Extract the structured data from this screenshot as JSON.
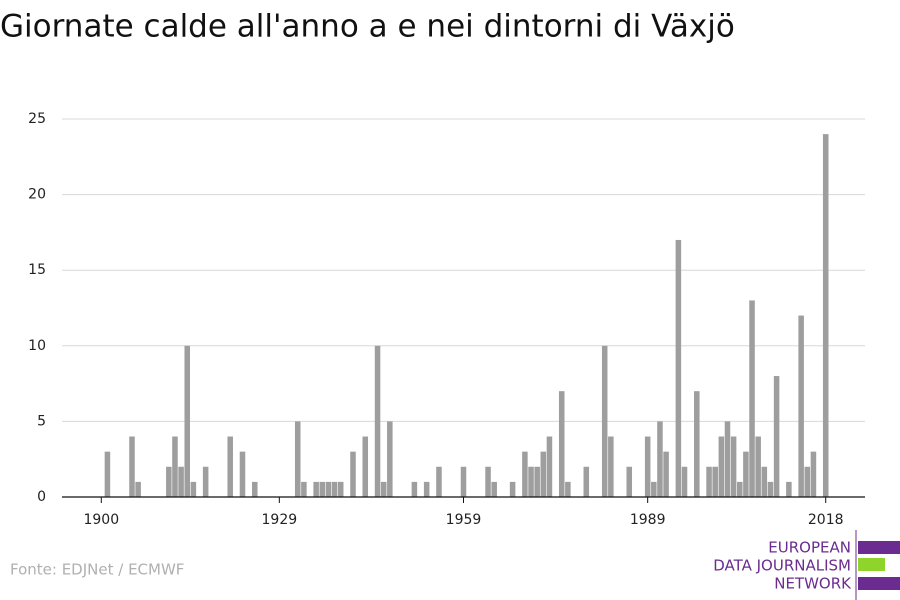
{
  "chart_data": {
    "type": "bar",
    "title": "Giornate calde all'anno a e nei dintorni di Växjö",
    "source": "Fonte: EDJNet / ECMWF",
    "color": "#9e9e9e",
    "x": [
      1900,
      1901,
      1902,
      1903,
      1904,
      1905,
      1906,
      1907,
      1908,
      1909,
      1910,
      1911,
      1912,
      1913,
      1914,
      1915,
      1916,
      1917,
      1918,
      1919,
      1920,
      1921,
      1922,
      1923,
      1924,
      1925,
      1926,
      1927,
      1928,
      1929,
      1930,
      1931,
      1932,
      1933,
      1934,
      1935,
      1936,
      1937,
      1938,
      1939,
      1940,
      1941,
      1942,
      1943,
      1944,
      1945,
      1946,
      1947,
      1948,
      1949,
      1950,
      1951,
      1952,
      1953,
      1954,
      1955,
      1956,
      1957,
      1958,
      1959,
      1960,
      1961,
      1962,
      1963,
      1964,
      1965,
      1966,
      1967,
      1968,
      1969,
      1970,
      1971,
      1972,
      1973,
      1974,
      1975,
      1976,
      1977,
      1978,
      1979,
      1980,
      1981,
      1982,
      1983,
      1984,
      1985,
      1986,
      1987,
      1988,
      1989,
      1990,
      1991,
      1992,
      1993,
      1994,
      1995,
      1996,
      1997,
      1998,
      1999,
      2000,
      2001,
      2002,
      2003,
      2004,
      2005,
      2006,
      2007,
      2008,
      2009,
      2010,
      2011,
      2012,
      2013,
      2014,
      2015,
      2016,
      2017,
      2018
    ],
    "values": [
      0,
      3,
      0,
      0,
      0,
      4,
      1,
      0,
      0,
      0,
      0,
      2,
      4,
      2,
      10,
      1,
      0,
      2,
      0,
      0,
      0,
      4,
      0,
      3,
      0,
      1,
      0,
      0,
      0,
      0,
      0,
      0,
      5,
      1,
      0,
      1,
      1,
      1,
      1,
      1,
      0,
      3,
      0,
      4,
      0,
      10,
      1,
      5,
      0,
      0,
      0,
      1,
      0,
      1,
      0,
      2,
      0,
      0,
      0,
      2,
      0,
      0,
      0,
      2,
      1,
      0,
      0,
      1,
      0,
      3,
      2,
      2,
      3,
      4,
      0,
      7,
      1,
      0,
      0,
      2,
      0,
      0,
      10,
      4,
      0,
      0,
      2,
      0,
      0,
      4,
      1,
      5,
      3,
      0,
      17,
      2,
      0,
      7,
      0,
      2,
      2,
      4,
      5,
      4,
      1,
      3,
      13,
      4,
      2,
      1,
      8,
      0,
      1,
      0,
      12,
      2,
      3,
      0,
      24
    ],
    "xlim": [
      1893.6,
      2024.4
    ],
    "xticks": [
      1900,
      1929,
      1959,
      1989,
      2018
    ],
    "ylim": [
      0,
      25
    ],
    "yticks": [
      0,
      5,
      10,
      15,
      20,
      25
    ],
    "grid": true
  },
  "logo": {
    "lines": [
      "EUROPEAN",
      "DATA JOURNALISM",
      "NETWORK"
    ]
  }
}
